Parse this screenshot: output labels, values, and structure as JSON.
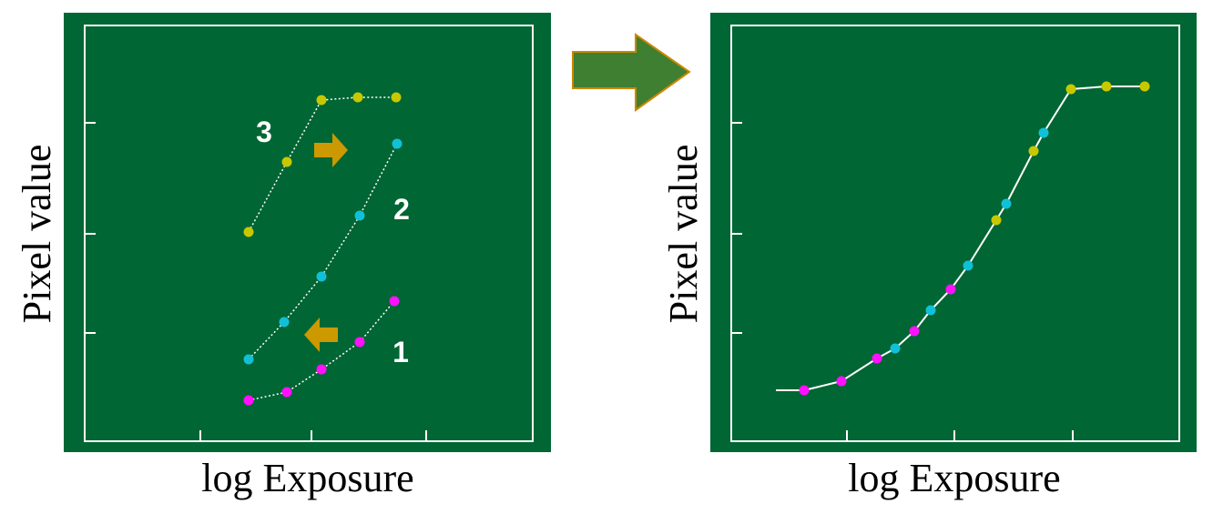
{
  "left_plot": {
    "y_label": "Pixel value",
    "x_label": "log Exposure",
    "curve_labels": [
      "3",
      "2",
      "1"
    ]
  },
  "right_plot": {
    "y_label": "Pixel value",
    "x_label": "log Exposure"
  }
}
